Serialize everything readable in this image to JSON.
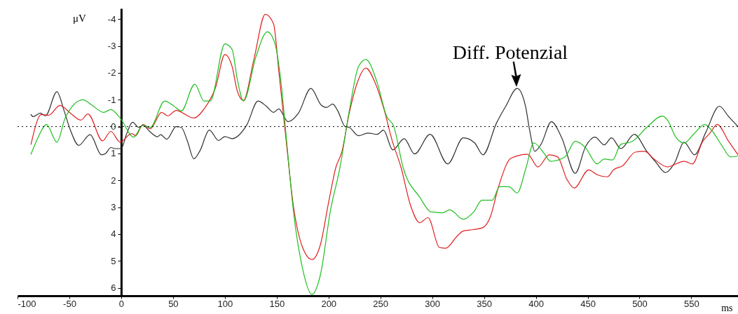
{
  "chart_data": {
    "type": "line",
    "xlabel": "ms",
    "ylabel": "μV",
    "xlim": [
      -100,
      595
    ],
    "ylim": [
      6.3,
      -4.4
    ],
    "xticks": [
      -100,
      -50,
      0,
      50,
      100,
      150,
      200,
      250,
      300,
      350,
      400,
      450,
      500,
      550
    ],
    "yticks": [
      -4,
      -3,
      -2,
      -1,
      0,
      1,
      2,
      3,
      4,
      5,
      6
    ],
    "grid": false,
    "marker": "none",
    "line_style": "solid",
    "ref_lines": [
      {
        "axis": "y",
        "value": 0,
        "line_style": "dotted",
        "color": "#000000"
      }
    ],
    "annotations": [
      {
        "text": "Diff. Potenzial",
        "x": 382,
        "y": -1.42
      }
    ],
    "series": [
      {
        "color": "#303030",
        "x": [
          -87,
          -85,
          -78,
          -73,
          -62,
          -55,
          -49,
          -41,
          -30,
          -19,
          -15,
          -10,
          -6,
          0,
          5,
          11,
          17,
          21,
          28,
          35,
          38,
          44,
          53,
          58,
          64,
          70,
          76,
          85,
          94,
          100,
          107,
          121,
          132,
          140,
          147,
          152,
          161,
          171,
          183,
          193,
          198,
          204,
          209,
          216,
          220,
          229,
          238,
          247,
          253,
          262,
          273,
          283,
          298,
          315,
          330,
          341,
          349,
          362,
          371,
          382,
          390,
          394,
          399,
          405,
          415,
          425,
          438,
          448,
          457,
          466,
          473,
          482,
          495,
          507,
          516,
          525,
          534,
          543,
          553,
          564,
          577,
          586,
          595
        ],
        "values": [
          -0.45,
          -0.37,
          -0.5,
          -0.4,
          -1.3,
          -0.58,
          0.13,
          0.7,
          0.3,
          1.05,
          1.0,
          0.78,
          0.82,
          0.82,
          0.3,
          -0.16,
          0.03,
          -0.05,
          0.2,
          0.38,
          0.3,
          0.47,
          0.0,
          0.03,
          0.55,
          1.2,
          0.9,
          0.13,
          0.52,
          0.37,
          0.45,
          -0.05,
          -0.95,
          -0.76,
          -0.53,
          -0.66,
          -0.18,
          -0.5,
          -1.42,
          -0.8,
          -0.71,
          -0.84,
          -0.58,
          0.0,
          0.03,
          0.34,
          0.24,
          0.29,
          0.13,
          0.87,
          0.45,
          1.02,
          0.29,
          1.39,
          0.42,
          0.61,
          1.05,
          -0.13,
          -0.76,
          -1.42,
          -0.76,
          0.13,
          0.92,
          0.66,
          -0.18,
          0.42,
          1.74,
          0.74,
          0.39,
          0.68,
          0.42,
          0.82,
          0.29,
          0.92,
          1.34,
          1.71,
          1.34,
          0.58,
          1.05,
          0.21,
          -0.76,
          -0.37,
          0.0
        ]
      },
      {
        "color": "#e02020",
        "x": [
          -87,
          -77,
          -70,
          -59,
          -49,
          -39,
          -32,
          -18,
          -10,
          -1,
          10,
          14,
          21,
          28,
          39,
          45,
          53,
          70,
          80,
          91,
          100,
          107,
          112,
          118,
          128,
          139,
          147,
          152,
          159,
          166,
          175,
          184,
          192,
          200,
          207,
          213,
          220,
          227,
          236,
          245,
          254,
          261,
          270,
          279,
          288,
          296,
          307,
          313,
          324,
          330,
          339,
          349,
          356,
          364,
          376,
          392,
          402,
          413,
          421,
          430,
          437,
          451,
          459,
          469,
          475,
          484,
          496,
          505,
          514,
          527,
          543,
          551,
          561,
          568,
          575,
          586,
          595
        ],
        "values": [
          0.66,
          -0.45,
          -0.42,
          -0.79,
          -0.5,
          -0.24,
          -0.47,
          0.53,
          0.18,
          0.58,
          0.26,
          0.34,
          -0.08,
          0.08,
          -0.53,
          -0.4,
          -0.6,
          -0.32,
          -0.66,
          -1.45,
          -2.68,
          -2.24,
          -1.32,
          -0.97,
          -2.5,
          -4.18,
          -3.82,
          -2.08,
          0.47,
          2.92,
          4.5,
          4.95,
          4.42,
          2.84,
          1.53,
          0.92,
          -0.5,
          -1.55,
          -2.18,
          -1.63,
          -0.58,
          0.47,
          1.53,
          2.92,
          3.58,
          3.39,
          4.5,
          4.53,
          4.08,
          3.89,
          3.84,
          3.76,
          3.37,
          2.24,
          1.18,
          1.03,
          1.5,
          1.05,
          1.13,
          1.97,
          2.29,
          1.61,
          1.79,
          1.87,
          1.61,
          1.45,
          0.95,
          0.92,
          1.21,
          1.5,
          1.29,
          1.39,
          0.55,
          0.24,
          -0.08,
          0.55,
          1.05
        ]
      },
      {
        "color": "#20c020",
        "x": [
          -87,
          -80,
          -72,
          -62,
          -54,
          -37,
          -28,
          -17,
          -10,
          -1,
          12,
          21,
          28,
          42,
          51,
          58,
          71,
          80,
          86,
          100,
          107,
          112,
          118,
          130,
          141,
          148,
          154,
          159,
          166,
          175,
          184,
          192,
          202,
          211,
          220,
          229,
          236,
          247,
          256,
          263,
          272,
          288,
          299,
          310,
          317,
          330,
          340,
          348,
          358,
          365,
          374,
          382,
          390,
          398,
          408,
          414,
          428,
          438,
          448,
          459,
          466,
          474,
          482,
          493,
          507,
          522,
          527,
          535,
          543,
          552,
          563,
          570,
          579,
          588,
          595
        ],
        "values": [
          1.03,
          0.39,
          -0.08,
          0.58,
          -0.32,
          -1.0,
          -0.79,
          -0.53,
          -0.63,
          -0.32,
          0.39,
          -0.05,
          0.03,
          -0.95,
          -0.76,
          -0.58,
          -1.58,
          -0.95,
          -0.95,
          -3.08,
          -2.87,
          -1.76,
          -0.95,
          -2.6,
          -3.53,
          -3.13,
          -1.71,
          0.29,
          3.1,
          5.29,
          6.25,
          5.55,
          3.1,
          1.53,
          -0.58,
          -2.24,
          -2.5,
          -1.63,
          -0.39,
          0.0,
          1.53,
          2.63,
          3.18,
          3.21,
          3.1,
          3.45,
          3.18,
          2.74,
          2.74,
          2.24,
          2.24,
          2.47,
          1.61,
          0.61,
          1.0,
          1.29,
          1.13,
          0.55,
          0.79,
          1.39,
          1.21,
          1.24,
          0.66,
          0.55,
          0.03,
          -0.39,
          -0.24,
          0.39,
          0.61,
          0.29,
          -0.08,
          0.16,
          0.68,
          1.13,
          1.1
        ]
      }
    ]
  }
}
